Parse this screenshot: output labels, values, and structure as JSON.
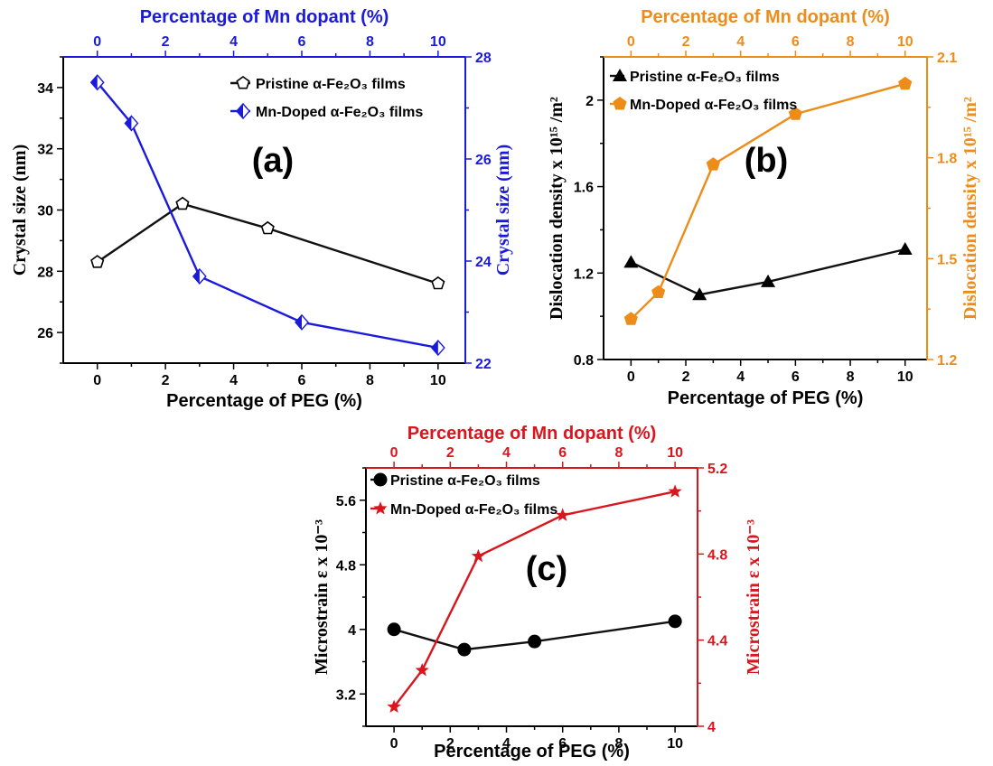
{
  "chart_data": [
    {
      "id": "a",
      "type": "line",
      "panel_label": "(a)",
      "xlabel": "Percentage of PEG (%)",
      "x2label": "Percentage of Mn dopant (%)",
      "ylabel": "Crystal size (nm)",
      "y2label": "Crystal size (nm)",
      "xlim": [
        -1,
        10.8
      ],
      "ylim": [
        25,
        35
      ],
      "y2lim": [
        22,
        28
      ],
      "xticks": [
        0,
        2,
        4,
        6,
        8,
        10
      ],
      "x2ticks": [
        0,
        2,
        4,
        6,
        8,
        10
      ],
      "yticks": [
        26,
        28,
        30,
        32,
        34
      ],
      "y2ticks": [
        22,
        24,
        26,
        28
      ],
      "axis2_color": "#1a1adb",
      "legend_position": "top-right",
      "series": [
        {
          "name": "Pristine α-Fe₂O₃ films",
          "axis": "primary",
          "color": "#111111",
          "marker": "pentagon",
          "x": [
            0,
            2.5,
            5,
            10
          ],
          "y": [
            28.3,
            30.2,
            29.4,
            27.6
          ]
        },
        {
          "name": "Mn-Doped α-Fe₂O₃ films",
          "axis": "secondary",
          "color": "#1a1adb",
          "marker": "diamond",
          "x": [
            0,
            1,
            3,
            6,
            10
          ],
          "y": [
            27.5,
            26.7,
            23.7,
            22.8,
            22.3
          ]
        }
      ]
    },
    {
      "id": "b",
      "type": "line",
      "panel_label": "(b)",
      "xlabel": "Percentage of PEG (%)",
      "x2label": "Percentage of Mn dopant (%)",
      "ylabel": "Dislocation density x 10¹⁵ /m²",
      "y2label": "Dislocation density x 10¹⁵ /m²",
      "xlim": [
        -1,
        10.8
      ],
      "ylim": [
        0.8,
        2.2
      ],
      "y2lim": [
        1.2,
        2.1
      ],
      "xticks": [
        0,
        2,
        4,
        6,
        8,
        10
      ],
      "x2ticks": [
        0,
        2,
        4,
        6,
        8,
        10
      ],
      "yticks": [
        0.8,
        1.2,
        1.6,
        2.0
      ],
      "y2ticks": [
        1.2,
        1.5,
        1.8,
        2.1
      ],
      "axis2_color": "#ee8c1a",
      "legend_position": "top-left",
      "series": [
        {
          "name": "Pristine α-Fe₂O₃ films",
          "axis": "primary",
          "color": "#111111",
          "marker": "triangle",
          "x": [
            0,
            2.5,
            5,
            10
          ],
          "y": [
            1.25,
            1.1,
            1.16,
            1.31
          ]
        },
        {
          "name": "Mn-Doped α-Fe₂O₃ films",
          "axis": "secondary",
          "color": "#ee8c1a",
          "marker": "pentagon",
          "x": [
            0,
            1,
            3,
            6,
            10
          ],
          "y": [
            1.32,
            1.4,
            1.78,
            1.93,
            2.02
          ]
        }
      ]
    },
    {
      "id": "c",
      "type": "line",
      "panel_label": "(c)",
      "xlabel": "Percentage of PEG (%)",
      "x2label": "Percentage of Mn dopant (%)",
      "ylabel": "Microstrain ε x 10⁻³",
      "y2label": "Microstrain ε x 10⁻³",
      "xlim": [
        -1,
        10.8
      ],
      "ylim": [
        2.8,
        6.0
      ],
      "y2lim": [
        4.0,
        5.2
      ],
      "xticks": [
        0,
        2,
        4,
        6,
        8,
        10
      ],
      "x2ticks": [
        0,
        2,
        4,
        6,
        8,
        10
      ],
      "yticks": [
        3.2,
        4.0,
        4.8,
        5.6
      ],
      "y2ticks": [
        4.0,
        4.4,
        4.8,
        5.2
      ],
      "axis2_color": "#d8161e",
      "legend_position": "top-left",
      "series": [
        {
          "name": "Pristine α-Fe₂O₃ films",
          "axis": "primary",
          "color": "#111111",
          "marker": "circle",
          "x": [
            0,
            2.5,
            5,
            10
          ],
          "y": [
            4.0,
            3.75,
            3.85,
            4.1
          ]
        },
        {
          "name": "Mn-Doped α-Fe₂O₃ films",
          "axis": "secondary",
          "color": "#d8161e",
          "marker": "star",
          "x": [
            0,
            1,
            3,
            6,
            10
          ],
          "y": [
            4.09,
            4.26,
            4.79,
            4.98,
            5.09
          ]
        }
      ]
    }
  ]
}
